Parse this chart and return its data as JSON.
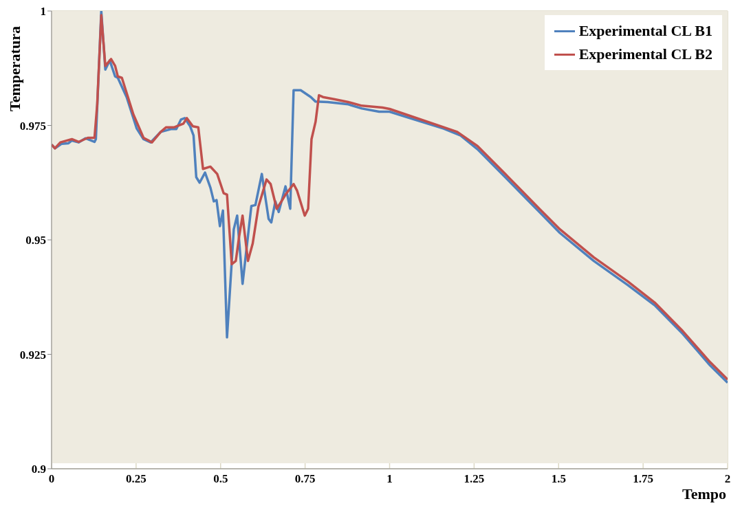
{
  "chart_data": {
    "type": "line",
    "xlabel": "Tempo",
    "ylabel": "Temperatura",
    "xlim": [
      0,
      2
    ],
    "xticks": [
      0,
      0.25,
      0.5,
      0.75,
      1,
      1.25,
      1.5,
      1.75,
      2
    ],
    "ylim": [
      0.9,
      1
    ],
    "yticks": [
      0.9,
      0.925,
      0.95,
      0.975,
      1
    ],
    "grid": true,
    "legend": "top right",
    "marker": "none",
    "line_style": "solid",
    "series": [
      {
        "name": "Experimental CL B1",
        "color": "#4f81bd",
        "x": [
          0,
          0.01,
          0.03,
          0.05,
          0.06,
          0.08,
          0.1,
          0.127,
          0.131,
          0.147,
          0.159,
          0.172,
          0.188,
          0.196,
          0.222,
          0.252,
          0.272,
          0.293,
          0.323,
          0.353,
          0.369,
          0.383,
          0.394,
          0.41,
          0.42,
          0.428,
          0.438,
          0.454,
          0.47,
          0.48,
          0.488,
          0.498,
          0.507,
          0.519,
          0.539,
          0.549,
          0.565,
          0.591,
          0.603,
          0.622,
          0.642,
          0.65,
          0.662,
          0.672,
          0.692,
          0.706,
          0.716,
          0.737,
          0.767,
          0.781,
          0.817,
          0.878,
          0.918,
          0.969,
          1,
          1.06,
          1.16,
          1.21,
          1.26,
          1.342,
          1.443,
          1.504,
          1.604,
          1.705,
          1.786,
          1.867,
          1.948,
          2
        ],
        "values": [
          0.9708,
          0.97,
          0.971,
          0.9711,
          0.9717,
          0.9713,
          0.9722,
          0.9714,
          0.972,
          1,
          0.9872,
          0.9892,
          0.9857,
          0.9854,
          0.9812,
          0.9743,
          0.972,
          0.9713,
          0.9736,
          0.9742,
          0.9742,
          0.9763,
          0.9766,
          0.9748,
          0.9728,
          0.9637,
          0.9625,
          0.9647,
          0.9614,
          0.9584,
          0.9587,
          0.953,
          0.9564,
          0.9287,
          0.9523,
          0.9553,
          0.9404,
          0.9574,
          0.9576,
          0.9644,
          0.9546,
          0.9538,
          0.9584,
          0.9561,
          0.9617,
          0.9568,
          0.9827,
          0.9827,
          0.9812,
          0.9802,
          0.9801,
          0.9796,
          0.9787,
          0.978,
          0.978,
          0.9766,
          0.9743,
          0.9728,
          0.9698,
          0.9637,
          0.9561,
          0.9515,
          0.9454,
          0.9401,
          0.9356,
          0.9295,
          0.9226,
          0.9188
        ]
      },
      {
        "name": "Experimental CL B2",
        "color": "#c0504d",
        "x": [
          0,
          0.01,
          0.026,
          0.06,
          0.08,
          0.107,
          0.127,
          0.135,
          0.147,
          0.159,
          0.176,
          0.188,
          0.196,
          0.208,
          0.242,
          0.272,
          0.297,
          0.323,
          0.339,
          0.363,
          0.39,
          0.4,
          0.418,
          0.434,
          0.448,
          0.47,
          0.49,
          0.509,
          0.519,
          0.533,
          0.545,
          0.555,
          0.565,
          0.581,
          0.595,
          0.612,
          0.636,
          0.648,
          0.666,
          0.68,
          0.692,
          0.716,
          0.726,
          0.749,
          0.759,
          0.769,
          0.781,
          0.791,
          0.803,
          0.838,
          0.878,
          0.918,
          0.979,
          1,
          1.06,
          1.16,
          1.2,
          1.26,
          1.342,
          1.443,
          1.504,
          1.604,
          1.705,
          1.786,
          1.867,
          1.948,
          2
        ],
        "values": [
          0.9708,
          0.97,
          0.9713,
          0.972,
          0.9714,
          0.9723,
          0.9723,
          0.9796,
          0.9991,
          0.988,
          0.9895,
          0.988,
          0.9857,
          0.9854,
          0.9774,
          0.9723,
          0.9713,
          0.9736,
          0.9746,
          0.9746,
          0.9754,
          0.9766,
          0.9748,
          0.9746,
          0.9655,
          0.966,
          0.9644,
          0.9602,
          0.9599,
          0.9447,
          0.9454,
          0.9508,
          0.9553,
          0.9454,
          0.9492,
          0.9573,
          0.9632,
          0.9622,
          0.9568,
          0.9584,
          0.9599,
          0.9622,
          0.9608,
          0.9553,
          0.9568,
          0.972,
          0.9758,
          0.9816,
          0.9812,
          0.9807,
          0.9801,
          0.9793,
          0.9789,
          0.9786,
          0.9771,
          0.9746,
          0.9736,
          0.9705,
          0.9644,
          0.9568,
          0.9523,
          0.9462,
          0.9409,
          0.9362,
          0.9301,
          0.9233,
          0.9195
        ]
      }
    ]
  }
}
